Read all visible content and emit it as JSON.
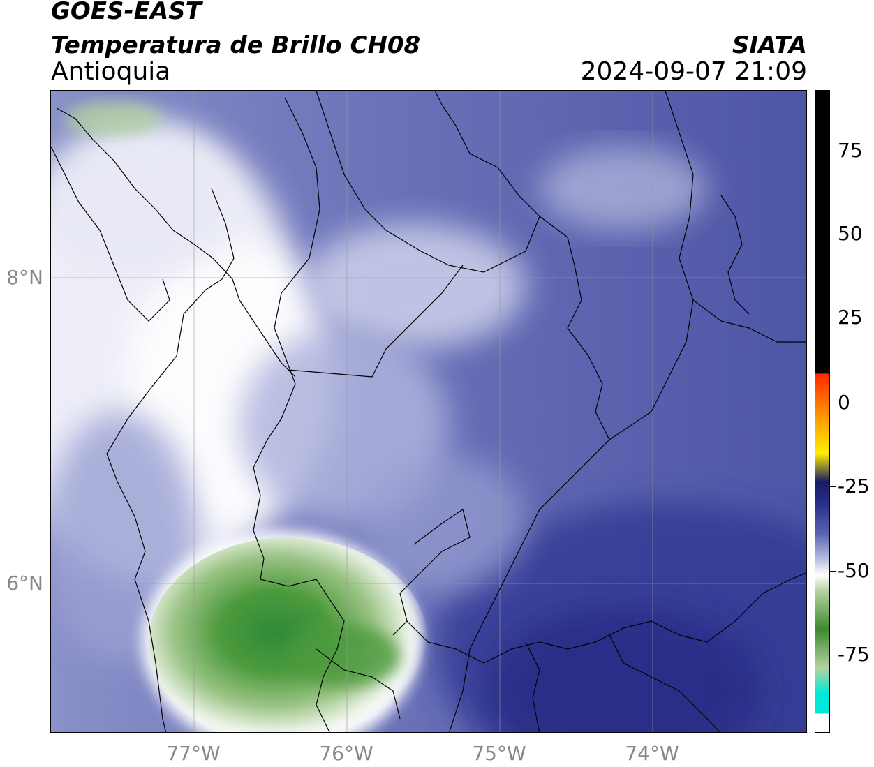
{
  "header": {
    "satellite": "GOES-EAST",
    "product": "Temperatura de Brillo CH08",
    "region": "Antioquia",
    "organization": "SIATA",
    "timestamp": "2024-09-07 21:09"
  },
  "map": {
    "lat_labels": [
      "8°N",
      "6°N"
    ],
    "lon_labels": [
      "77°W",
      "76°W",
      "75°W",
      "74°W"
    ]
  },
  "colorbar": {
    "ticks": [
      "75",
      "50",
      "25",
      "0",
      "-25",
      "-50",
      "-75"
    ],
    "colors": {
      "black": "#000000",
      "red": "#ff2a00",
      "orange": "#ff9a00",
      "yellow": "#ffee00",
      "dark_navy": "#1a1a66",
      "navy": "#2a2f8f",
      "blue_purple": "#5a62b0",
      "lavender": "#b9bde0",
      "white": "#ffffff",
      "light_green": "#b4d2a0",
      "green": "#3c8a2e",
      "cyan": "#00e8d8"
    }
  }
}
